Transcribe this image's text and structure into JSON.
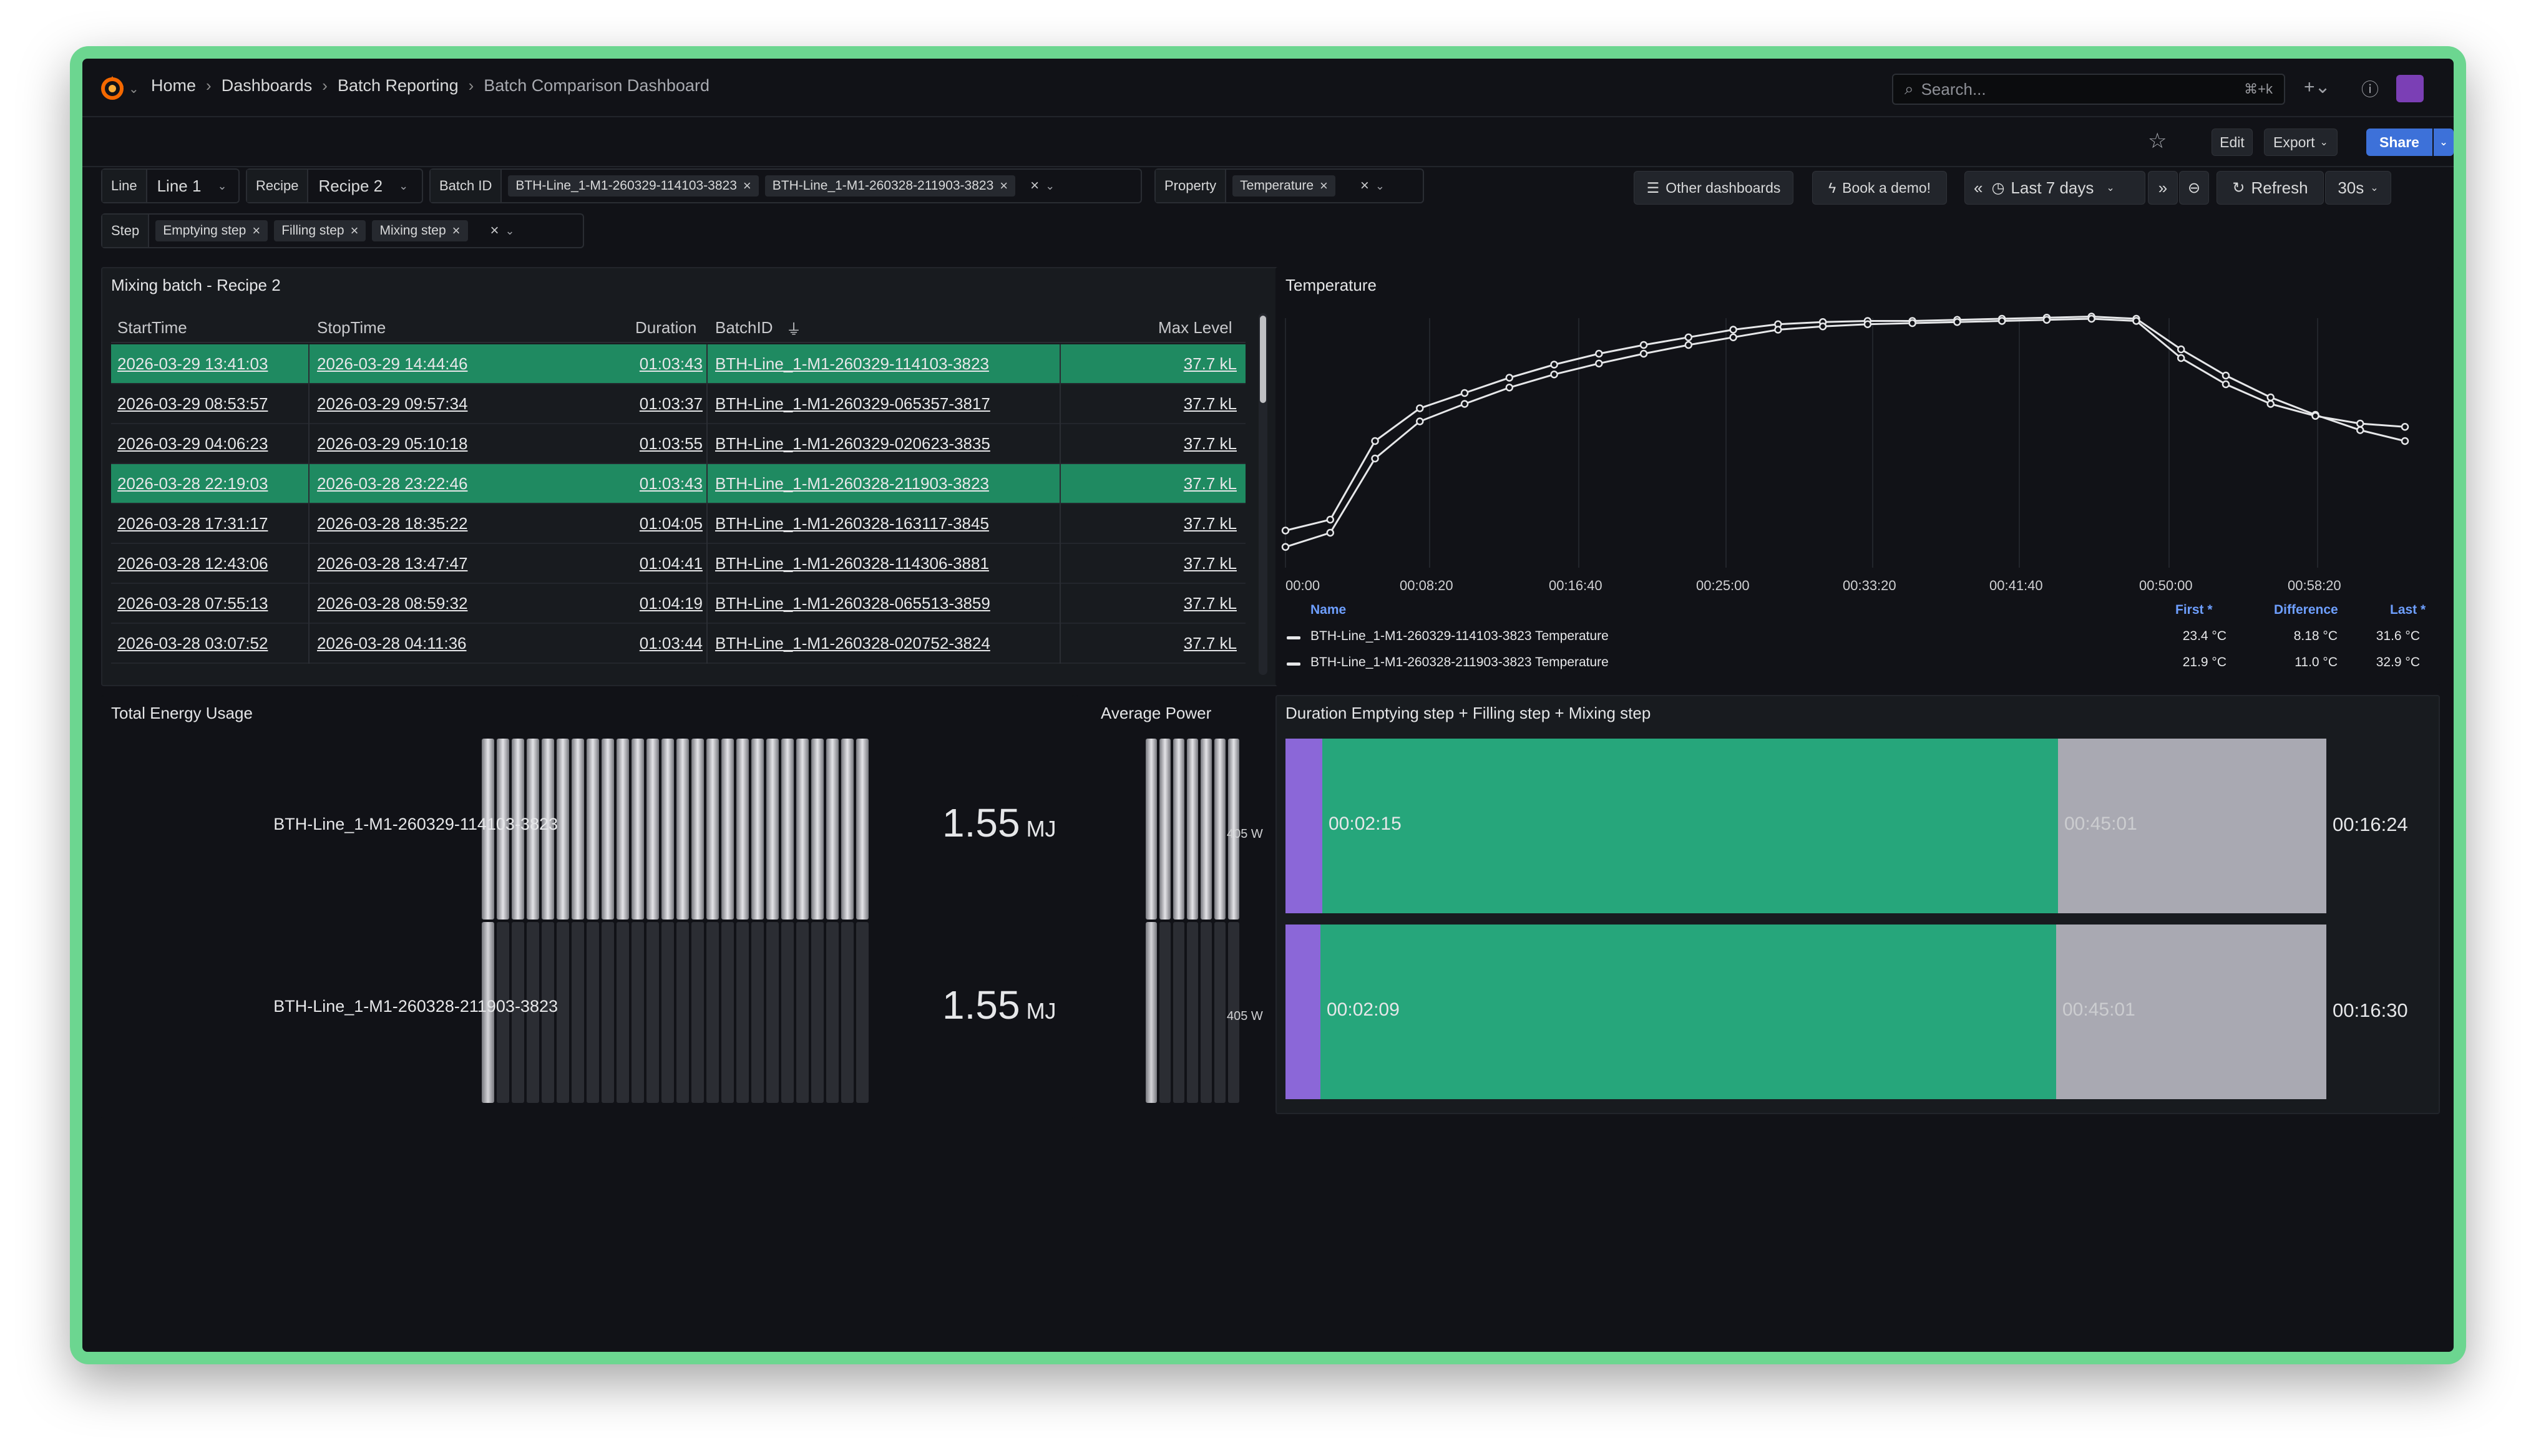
{
  "breadcrumb": {
    "items": [
      "Home",
      "Dashboards",
      "Batch Reporting"
    ],
    "current": "Batch Comparison Dashboard"
  },
  "search": {
    "placeholder": "Search...",
    "shortcut": "⌘+k"
  },
  "toolbar": {
    "edit": "Edit",
    "export": "Export",
    "share": "Share"
  },
  "variables": {
    "line": {
      "label": "Line",
      "value": "Line 1"
    },
    "recipe": {
      "label": "Recipe",
      "value": "Recipe 2"
    },
    "batch": {
      "label": "Batch ID",
      "chips": [
        "BTH-Line_1-M1-260329-114103-3823",
        "BTH-Line_1-M1-260328-211903-3823"
      ]
    },
    "property": {
      "label": "Property",
      "chips": [
        "Temperature"
      ]
    },
    "step": {
      "label": "Step",
      "chips": [
        "Emptying step",
        "Filling step",
        "Mixing step"
      ]
    }
  },
  "controls": {
    "other_dashboards": "Other dashboards",
    "book_demo": "Book a demo!",
    "time_range": "Last 7 days",
    "refresh": "Refresh",
    "refresh_interval": "30s"
  },
  "batch_table": {
    "title": "Mixing batch - Recipe 2",
    "columns": [
      "StartTime",
      "StopTime",
      "Duration",
      "BatchID",
      "Max Level"
    ],
    "rows": [
      {
        "start": "2026-03-29 13:41:03",
        "stop": "2026-03-29 14:44:46",
        "duration": "01:03:43",
        "batch": "BTH-Line_1-M1-260329-114103-3823",
        "max": "37.7 kL",
        "selected": true
      },
      {
        "start": "2026-03-29 08:53:57",
        "stop": "2026-03-29 09:57:34",
        "duration": "01:03:37",
        "batch": "BTH-Line_1-M1-260329-065357-3817",
        "max": "37.7 kL",
        "selected": false
      },
      {
        "start": "2026-03-29 04:06:23",
        "stop": "2026-03-29 05:10:18",
        "duration": "01:03:55",
        "batch": "BTH-Line_1-M1-260329-020623-3835",
        "max": "37.7 kL",
        "selected": false
      },
      {
        "start": "2026-03-28 22:19:03",
        "stop": "2026-03-28 23:22:46",
        "duration": "01:03:43",
        "batch": "BTH-Line_1-M1-260328-211903-3823",
        "max": "37.7 kL",
        "selected": true
      },
      {
        "start": "2026-03-28 17:31:17",
        "stop": "2026-03-28 18:35:22",
        "duration": "01:04:05",
        "batch": "BTH-Line_1-M1-260328-163117-3845",
        "max": "37.7 kL",
        "selected": false
      },
      {
        "start": "2026-03-28 12:43:06",
        "stop": "2026-03-28 13:47:47",
        "duration": "01:04:41",
        "batch": "BTH-Line_1-M1-260328-114306-3881",
        "max": "37.7 kL",
        "selected": false
      },
      {
        "start": "2026-03-28 07:55:13",
        "stop": "2026-03-28 08:59:32",
        "duration": "01:04:19",
        "batch": "BTH-Line_1-M1-260328-065513-3859",
        "max": "37.7 kL",
        "selected": false
      },
      {
        "start": "2026-03-28 03:07:52",
        "stop": "2026-03-28 04:11:36",
        "duration": "01:03:44",
        "batch": "BTH-Line_1-M1-260328-020752-3824",
        "max": "37.7 kL",
        "selected": false
      }
    ]
  },
  "temperature_panel": {
    "title": "Temperature",
    "x_ticks": [
      "00:00",
      "00:08:20",
      "00:16:40",
      "00:25:00",
      "00:33:20",
      "00:41:40",
      "00:50:00",
      "00:58:20"
    ],
    "legend_headers": {
      "name": "Name",
      "first": "First *",
      "difference": "Difference",
      "last": "Last *"
    },
    "legend_rows": [
      {
        "name": "BTH-Line_1-M1-260329-114103-3823 Temperature",
        "first": "23.4 °C",
        "difference": "8.18 °C",
        "last": "31.6 °C"
      },
      {
        "name": "BTH-Line_1-M1-260328-211903-3823 Temperature",
        "first": "21.9 °C",
        "difference": "11.0 °C",
        "last": "32.9 °C"
      }
    ]
  },
  "chart_data": {
    "type": "line",
    "title": "Temperature",
    "x_unit": "elapsed time (hh:mm:ss)",
    "x": [
      "00:00",
      "00:02:30",
      "00:05:00",
      "00:07:30",
      "00:10:00",
      "00:12:30",
      "00:15:00",
      "00:17:30",
      "00:20:00",
      "00:22:30",
      "00:25:00",
      "00:27:30",
      "00:30:00",
      "00:32:30",
      "00:35:00",
      "00:37:30",
      "00:40:00",
      "00:42:30",
      "00:45:00",
      "00:47:30",
      "00:50:00",
      "00:52:30",
      "00:55:00",
      "00:57:30",
      "01:00:00",
      "01:02:30"
    ],
    "series": [
      {
        "name": "BTH-Line_1-M1-260329-114103-3823 Temperature",
        "color": "#e6e7e9",
        "values": [
          23.4,
          24.4,
          31.6,
          34.6,
          36.0,
          37.4,
          38.6,
          39.6,
          40.4,
          41.1,
          41.8,
          42.3,
          42.5,
          42.6,
          42.6,
          42.7,
          42.8,
          42.9,
          43.0,
          42.8,
          40.0,
          37.6,
          35.6,
          34.0,
          32.6,
          31.6
        ]
      },
      {
        "name": "BTH-Line_1-M1-260328-211903-3823 Temperature",
        "color": "#e6e7e9",
        "values": [
          21.9,
          23.2,
          30.0,
          33.4,
          35.0,
          36.5,
          37.7,
          38.7,
          39.6,
          40.4,
          41.1,
          41.8,
          42.1,
          42.3,
          42.4,
          42.5,
          42.6,
          42.7,
          42.8,
          42.6,
          39.2,
          36.8,
          35.0,
          33.9,
          33.2,
          32.9
        ]
      }
    ]
  },
  "energy_panel": {
    "title": "Total Energy Usage",
    "items": [
      {
        "name": "BTH-Line_1-M1-260329-114103-3823",
        "value": "1.55",
        "unit": "MJ"
      },
      {
        "name": "BTH-Line_1-M1-260328-211903-3823",
        "value": "1.55",
        "unit": "MJ"
      }
    ]
  },
  "power_panel": {
    "title": "Average Power",
    "items": [
      {
        "value": "405 W"
      },
      {
        "value": "405 W"
      }
    ]
  },
  "duration_panel": {
    "title": "Duration Emptying step + Filling step + Mixing step",
    "rows": [
      {
        "emptying_label": "00:02:15",
        "filling_label": "00:45:01",
        "mixing_label": "00:16:24",
        "emptying_s": 135,
        "filling_s": 2701,
        "mixing_s": 984
      },
      {
        "emptying_label": "00:02:09",
        "filling_label": "00:45:01",
        "mixing_label": "00:16:30",
        "emptying_s": 129,
        "filling_s": 2701,
        "mixing_s": 990
      }
    ],
    "colors": {
      "emptying": "#8b67d8",
      "filling": "#26a67b",
      "mixing": "#a9a9b2"
    }
  }
}
